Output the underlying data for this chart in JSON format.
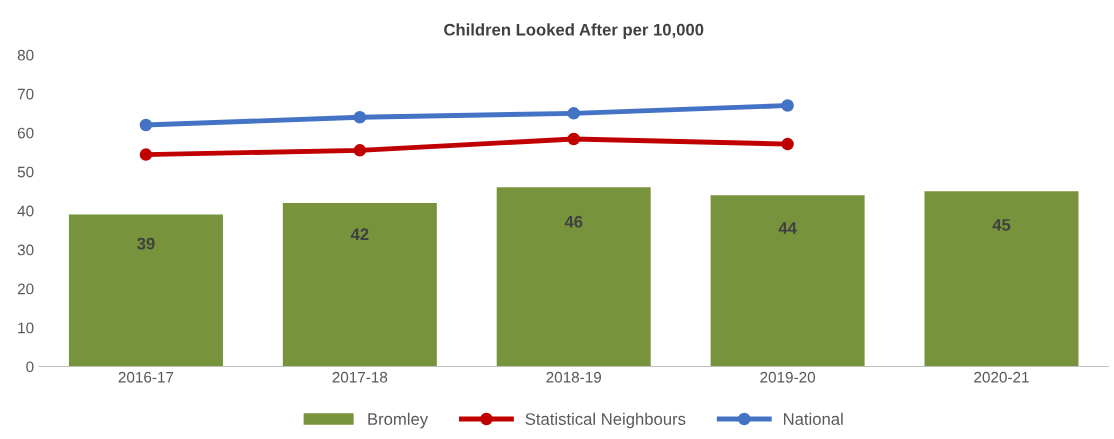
{
  "chart_data": {
    "type": "bar",
    "title": "Children Looked After per 10,000",
    "categories": [
      "2016-17",
      "2017-18",
      "2018-19",
      "2019-20",
      "2020-21"
    ],
    "series": [
      {
        "name": "Bromley",
        "color": "#77933c",
        "values": [
          39,
          42,
          46,
          44,
          45
        ],
        "value_labels": [
          "39",
          "42",
          "46",
          "44",
          "45"
        ]
      },
      {
        "name": "Statistical Neighbours",
        "type": "line",
        "color": "#c00000",
        "values": [
          54.4,
          55.5,
          58.4,
          57.1,
          null
        ]
      },
      {
        "name": "National",
        "type": "line",
        "color": "#4472c4",
        "values": [
          62,
          64,
          65,
          67,
          null
        ]
      }
    ],
    "ylim": [
      0,
      80
    ],
    "yticks": [
      0,
      10,
      20,
      30,
      40,
      50,
      60,
      70,
      80
    ],
    "grid": false,
    "legend": "bottom",
    "marker": "circle",
    "line_style": "solid"
  }
}
